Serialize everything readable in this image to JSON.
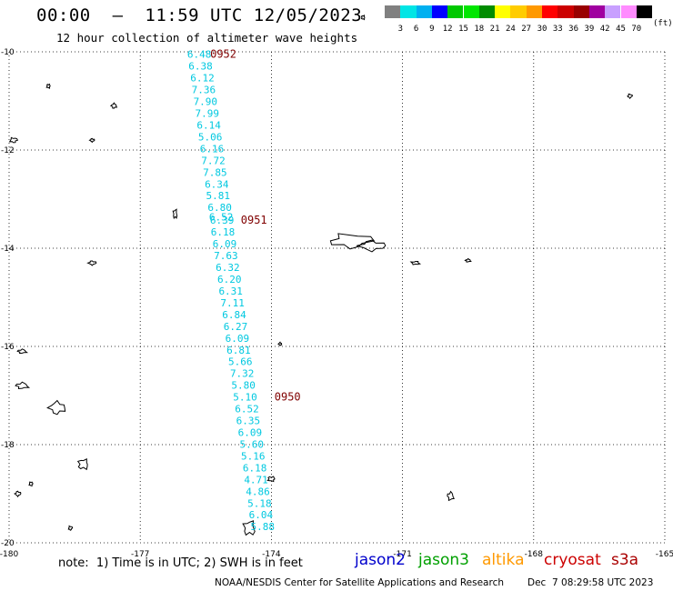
{
  "header": {
    "title": "00:00  —  11:59 UTC 12/05/2023",
    "subtitle": "12 hour collection of altimeter wave heights"
  },
  "color_scale": {
    "colors": [
      "#808080",
      "#00e5e5",
      "#00b0f0",
      "#0000ff",
      "#00c800",
      "#00e600",
      "#008c00",
      "#ffff00",
      "#ffcc00",
      "#ff9900",
      "#ff0000",
      "#cc0000",
      "#990000",
      "#a000a0",
      "#c8a0ff",
      "#ff8cff",
      "#000000"
    ],
    "labels": [
      "3",
      "6",
      "9",
      "12",
      "15",
      "18",
      "21",
      "24",
      "27",
      "30",
      "33",
      "36",
      "39",
      "42",
      "45",
      "70"
    ],
    "unit": "(ft)"
  },
  "map": {
    "lon_range": [
      -180,
      -165
    ],
    "lat_range": [
      -20,
      -10
    ],
    "lon_ticks": [
      {
        "value": -180,
        "label": "-180"
      },
      {
        "value": -177,
        "label": "-177"
      },
      {
        "value": -174,
        "label": "-174"
      },
      {
        "value": -171,
        "label": "-171"
      },
      {
        "value": -168,
        "label": "-168"
      },
      {
        "value": -165,
        "label": "-165"
      }
    ],
    "lat_ticks": [
      {
        "value": -10,
        "label": "-10"
      },
      {
        "value": -12,
        "label": "-12"
      },
      {
        "value": -14,
        "label": "-14"
      },
      {
        "value": -16,
        "label": "-16"
      },
      {
        "value": -18,
        "label": "-18"
      },
      {
        "value": -20,
        "label": "-20"
      }
    ],
    "grid": true,
    "track_color": "#00c8e0",
    "time_label_color": "#800000"
  },
  "track": {
    "satellite": "jason3",
    "points": [
      {
        "lon": -175.65,
        "lat": -10.05,
        "swh": "6.48"
      },
      {
        "lon": -175.62,
        "lat": -10.29,
        "swh": "6.38"
      },
      {
        "lon": -175.58,
        "lat": -10.53,
        "swh": "6.12"
      },
      {
        "lon": -175.55,
        "lat": -10.77,
        "swh": "7.36"
      },
      {
        "lon": -175.51,
        "lat": -11.01,
        "swh": "7.90"
      },
      {
        "lon": -175.47,
        "lat": -11.25,
        "swh": "7.99"
      },
      {
        "lon": -175.43,
        "lat": -11.49,
        "swh": "6.14"
      },
      {
        "lon": -175.4,
        "lat": -11.73,
        "swh": "5.06"
      },
      {
        "lon": -175.36,
        "lat": -11.97,
        "swh": "6.16"
      },
      {
        "lon": -175.33,
        "lat": -12.21,
        "swh": "7.72"
      },
      {
        "lon": -175.29,
        "lat": -12.45,
        "swh": "7.85"
      },
      {
        "lon": -175.25,
        "lat": -12.69,
        "swh": "6.34"
      },
      {
        "lon": -175.22,
        "lat": -12.93,
        "swh": "5.81"
      },
      {
        "lon": -175.18,
        "lat": -13.17,
        "swh": "6.80"
      },
      {
        "lon": -175.15,
        "lat": -13.36,
        "swh": "6.52"
      },
      {
        "lon": -175.13,
        "lat": -13.43,
        "swh": "6.39"
      },
      {
        "lon": -175.11,
        "lat": -13.67,
        "swh": "6.18"
      },
      {
        "lon": -175.07,
        "lat": -13.91,
        "swh": "6.09"
      },
      {
        "lon": -175.04,
        "lat": -14.15,
        "swh": "7.63"
      },
      {
        "lon": -175.0,
        "lat": -14.39,
        "swh": "6.32"
      },
      {
        "lon": -174.96,
        "lat": -14.63,
        "swh": "6.20"
      },
      {
        "lon": -174.93,
        "lat": -14.87,
        "swh": "6.31"
      },
      {
        "lon": -174.89,
        "lat": -15.11,
        "swh": "7.11"
      },
      {
        "lon": -174.85,
        "lat": -15.35,
        "swh": "6.84"
      },
      {
        "lon": -174.82,
        "lat": -15.59,
        "swh": "6.27"
      },
      {
        "lon": -174.78,
        "lat": -15.83,
        "swh": "6.09"
      },
      {
        "lon": -174.75,
        "lat": -16.07,
        "swh": "6.81"
      },
      {
        "lon": -174.71,
        "lat": -16.31,
        "swh": "5.66"
      },
      {
        "lon": -174.67,
        "lat": -16.55,
        "swh": "7.32"
      },
      {
        "lon": -174.64,
        "lat": -16.79,
        "swh": "5.80"
      },
      {
        "lon": -174.6,
        "lat": -17.03,
        "swh": "5.10"
      },
      {
        "lon": -174.56,
        "lat": -17.27,
        "swh": "6.52"
      },
      {
        "lon": -174.53,
        "lat": -17.51,
        "swh": "6.35"
      },
      {
        "lon": -174.49,
        "lat": -17.75,
        "swh": "6.09"
      },
      {
        "lon": -174.45,
        "lat": -17.99,
        "swh": "5.60"
      },
      {
        "lon": -174.42,
        "lat": -18.23,
        "swh": "5.16"
      },
      {
        "lon": -174.38,
        "lat": -18.47,
        "swh": "6.18"
      },
      {
        "lon": -174.35,
        "lat": -18.71,
        "swh": "4.71"
      },
      {
        "lon": -174.31,
        "lat": -18.95,
        "swh": "4.86"
      },
      {
        "lon": -174.27,
        "lat": -19.19,
        "swh": "5.18"
      },
      {
        "lon": -174.24,
        "lat": -19.43,
        "swh": "6.04"
      },
      {
        "lon": -174.2,
        "lat": -19.67,
        "swh": "5.88"
      }
    ],
    "time_labels": [
      {
        "lon": -175.4,
        "lat": -10.05,
        "text": "0952"
      },
      {
        "lon": -174.7,
        "lat": -13.43,
        "text": "0951"
      },
      {
        "lon": -173.93,
        "lat": -17.03,
        "text": "0950"
      }
    ]
  },
  "land": [
    {
      "name": "samoa-upolu",
      "lon": -172.2,
      "lat": -13.85,
      "w": 1.1,
      "h": 0.35
    },
    {
      "name": "samoa-savaii",
      "lon": -171.7,
      "lat": -13.95,
      "w": 0.7,
      "h": 0.25
    },
    {
      "name": "american-samoa",
      "lon": -170.7,
      "lat": -14.3,
      "w": 0.25,
      "h": 0.08
    },
    {
      "name": "ofu",
      "lon": -169.5,
      "lat": -14.25,
      "w": 0.15,
      "h": 0.06
    },
    {
      "name": "wallis",
      "lon": -176.2,
      "lat": -13.3,
      "w": 0.12,
      "h": 0.22
    },
    {
      "name": "niuatoputapu",
      "lon": -173.8,
      "lat": -15.95,
      "w": 0.05,
      "h": 0.06
    },
    {
      "name": "futuna",
      "lon": -178.1,
      "lat": -14.3,
      "w": 0.2,
      "h": 0.1
    },
    {
      "name": "vava-u",
      "lon": -174.0,
      "lat": -18.7,
      "w": 0.2,
      "h": 0.12
    },
    {
      "name": "haapai",
      "lon": -174.5,
      "lat": -19.7,
      "w": 0.35,
      "h": 0.35
    },
    {
      "name": "niue",
      "lon": -169.9,
      "lat": -19.05,
      "w": 0.18,
      "h": 0.2
    },
    {
      "name": "fiji-lau-1",
      "lon": -178.9,
      "lat": -17.25,
      "w": 0.45,
      "h": 0.3
    },
    {
      "name": "fiji-lau-2",
      "lon": -178.3,
      "lat": -18.4,
      "w": 0.3,
      "h": 0.25
    },
    {
      "name": "fiji-lau-3",
      "lon": -179.7,
      "lat": -16.8,
      "w": 0.35,
      "h": 0.15
    },
    {
      "name": "tokelau-1",
      "lon": -171.9,
      "lat": -9.3,
      "w": 0.1,
      "h": 0.1
    },
    {
      "name": "tokelau-2",
      "lon": -165.8,
      "lat": -10.9,
      "w": 0.12,
      "h": 0.1
    },
    {
      "name": "north-1",
      "lon": -179.1,
      "lat": -10.7,
      "w": 0.1,
      "h": 0.1
    },
    {
      "name": "north-2",
      "lon": -177.6,
      "lat": -11.1,
      "w": 0.15,
      "h": 0.12
    },
    {
      "name": "north-3",
      "lon": -178.1,
      "lat": -11.8,
      "w": 0.12,
      "h": 0.08
    },
    {
      "name": "west-1",
      "lon": -179.9,
      "lat": -11.8,
      "w": 0.2,
      "h": 0.12
    },
    {
      "name": "west-2",
      "lon": -179.7,
      "lat": -16.1,
      "w": 0.25,
      "h": 0.1
    },
    {
      "name": "west-3",
      "lon": -179.5,
      "lat": -18.8,
      "w": 0.1,
      "h": 0.1
    },
    {
      "name": "west-4",
      "lon": -179.8,
      "lat": -19.0,
      "w": 0.15,
      "h": 0.12
    },
    {
      "name": "west-5",
      "lon": -178.6,
      "lat": -19.7,
      "w": 0.1,
      "h": 0.1
    }
  ],
  "notes": {
    "note_text": "note:  1) Time is in UTC; 2) SWH is in feet"
  },
  "legend": [
    {
      "name": "jason2",
      "color": "#0000cc"
    },
    {
      "name": "jason3",
      "color": "#00a000"
    },
    {
      "name": "altika",
      "color": "#ff9900"
    },
    {
      "name": "cryosat",
      "color": "#cc0000"
    },
    {
      "name": "s3a",
      "color": "#aa0000"
    }
  ],
  "footer": {
    "credit": "NOAA/NESDIS Center for Satellite Applications and Research",
    "date": "Dec  7 08:29:58 UTC 2023"
  }
}
